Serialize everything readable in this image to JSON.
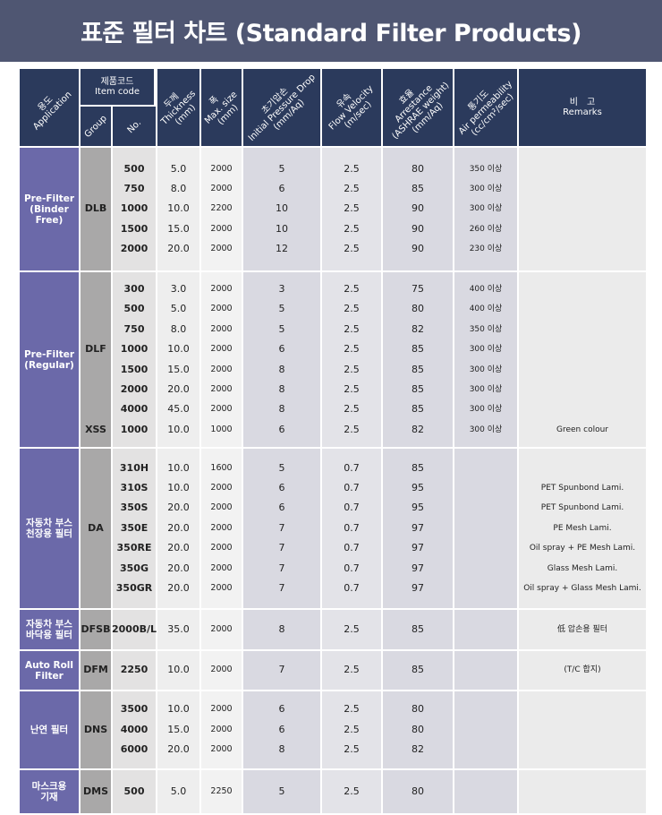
{
  "title": "표준 필터 차트 (Standard Filter Products)",
  "colors": {
    "title_bar": "#4f5672",
    "header": "#2b3a5c",
    "application": "#6b69a9",
    "group": "#a9a8a8"
  },
  "headers": {
    "application": [
      "용도",
      "Application"
    ],
    "item_code": [
      "제품코드",
      "Item code"
    ],
    "group": "Group",
    "no": "No.",
    "thickness": [
      "두께",
      "Thickness",
      "(mm)"
    ],
    "size": [
      "폭",
      "Max. size",
      "(mm)"
    ],
    "pressure": [
      "초기압손",
      "Initial Pressure Drop",
      "(mm/Aq)"
    ],
    "velocity": [
      "유속",
      "Flow Velocity",
      "(m/sec)"
    ],
    "arrestance": [
      "효율",
      "Arrestance",
      "(ASHRAE weight)",
      "(mm/Aq)"
    ],
    "permeability": [
      "통기도",
      "Air permeability",
      "(cc/cm²/sec)"
    ],
    "remarks": [
      "비　고",
      "Remarks"
    ]
  },
  "sections": [
    {
      "application": [
        "Pre-Filter",
        "(Binder Free)"
      ],
      "group": [
        "",
        "",
        "DLB",
        "",
        ""
      ],
      "rows": [
        [
          "500",
          "5.0",
          "2000",
          "5",
          "2.5",
          "80",
          "350 이상",
          ""
        ],
        [
          "750",
          "8.0",
          "2000",
          "6",
          "2.5",
          "85",
          "300 이상",
          ""
        ],
        [
          "1000",
          "10.0",
          "2200",
          "10",
          "2.5",
          "90",
          "300 이상",
          ""
        ],
        [
          "1500",
          "15.0",
          "2000",
          "10",
          "2.5",
          "90",
          "260 이상",
          ""
        ],
        [
          "2000",
          "20.0",
          "2000",
          "12",
          "2.5",
          "90",
          "230 이상",
          ""
        ]
      ]
    },
    {
      "application": [
        "Pre-Filter",
        "(Regular)"
      ],
      "group": [
        "",
        "",
        "",
        "DLF",
        "",
        "",
        "",
        "XSS"
      ],
      "rows": [
        [
          "300",
          "3.0",
          "2000",
          "3",
          "2.5",
          "75",
          "400 이상",
          ""
        ],
        [
          "500",
          "5.0",
          "2000",
          "5",
          "2.5",
          "80",
          "400 이상",
          ""
        ],
        [
          "750",
          "8.0",
          "2000",
          "5",
          "2.5",
          "82",
          "350 이상",
          ""
        ],
        [
          "1000",
          "10.0",
          "2000",
          "6",
          "2.5",
          "85",
          "300 이상",
          ""
        ],
        [
          "1500",
          "15.0",
          "2000",
          "8",
          "2.5",
          "85",
          "300 이상",
          ""
        ],
        [
          "2000",
          "20.0",
          "2000",
          "8",
          "2.5",
          "85",
          "300 이상",
          ""
        ],
        [
          "4000",
          "45.0",
          "2000",
          "8",
          "2.5",
          "85",
          "300 이상",
          ""
        ],
        [
          "1000",
          "10.0",
          "1000",
          "6",
          "2.5",
          "82",
          "300 이상",
          "Green colour"
        ]
      ]
    },
    {
      "application": [
        "자동차 부스",
        "천장용 필터"
      ],
      "group": [
        "",
        "",
        "",
        "DA",
        "",
        "",
        ""
      ],
      "rows": [
        [
          "310H",
          "10.0",
          "1600",
          "5",
          "0.7",
          "85",
          "",
          ""
        ],
        [
          "310S",
          "10.0",
          "2000",
          "6",
          "0.7",
          "95",
          "",
          "PET Spunbond Lami."
        ],
        [
          "350S",
          "20.0",
          "2000",
          "6",
          "0.7",
          "95",
          "",
          "PET Spunbond Lami."
        ],
        [
          "350E",
          "20.0",
          "2000",
          "7",
          "0.7",
          "97",
          "",
          "PE Mesh Lami."
        ],
        [
          "350RE",
          "20.0",
          "2000",
          "7",
          "0.7",
          "97",
          "",
          "Oil spray + PE Mesh Lami."
        ],
        [
          "350G",
          "20.0",
          "2000",
          "7",
          "0.7",
          "97",
          "",
          "Glass Mesh Lami."
        ],
        [
          "350GR",
          "20.0",
          "2000",
          "7",
          "0.7",
          "97",
          "",
          "Oil spray + Glass Mesh Lami."
        ]
      ]
    },
    {
      "application": [
        "자동차 부스",
        "바닥용 필터"
      ],
      "group": [
        "DFSB"
      ],
      "rows": [
        [
          "2000B/L",
          "35.0",
          "2000",
          "8",
          "2.5",
          "85",
          "",
          "低 압손용 필터"
        ]
      ]
    },
    {
      "application": [
        "Auto Roll",
        "Filter"
      ],
      "group": [
        "DFM"
      ],
      "rows": [
        [
          "2250",
          "10.0",
          "2000",
          "7",
          "2.5",
          "85",
          "",
          "(T/C 합지)"
        ]
      ]
    },
    {
      "application": [
        "난연 필터"
      ],
      "group": [
        "",
        "DNS",
        ""
      ],
      "rows": [
        [
          "3500",
          "10.0",
          "2000",
          "6",
          "2.5",
          "80",
          "",
          ""
        ],
        [
          "4000",
          "15.0",
          "2000",
          "6",
          "2.5",
          "80",
          "",
          ""
        ],
        [
          "6000",
          "20.0",
          "2000",
          "8",
          "2.5",
          "82",
          "",
          ""
        ]
      ]
    },
    {
      "application": [
        "마스크용",
        "기재"
      ],
      "group": [
        "DMS"
      ],
      "rows": [
        [
          "500",
          "5.0",
          "2250",
          "5",
          "2.5",
          "80",
          "",
          ""
        ]
      ]
    }
  ]
}
